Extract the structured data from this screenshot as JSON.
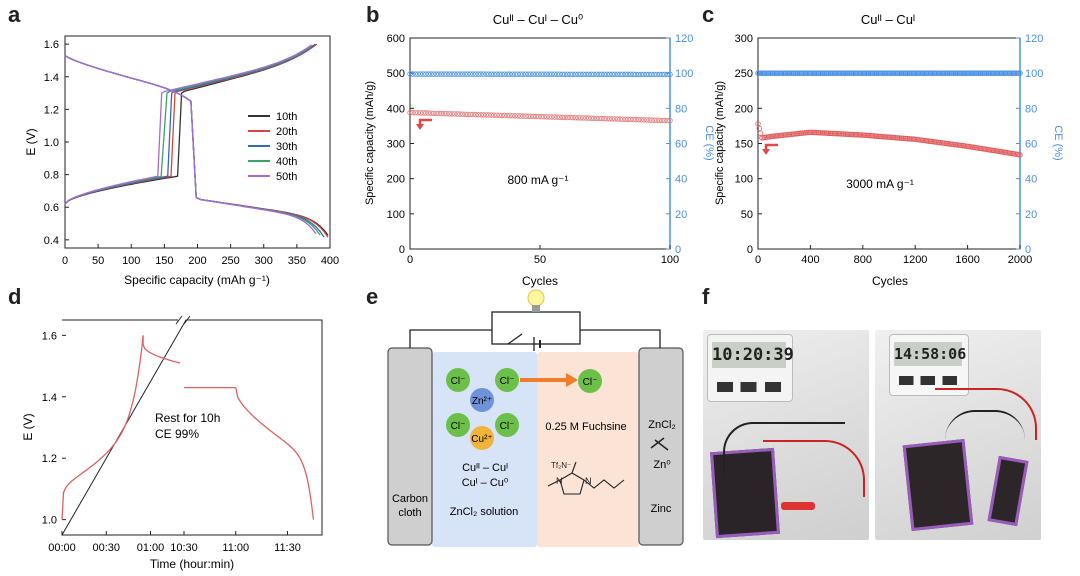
{
  "panels": {
    "a": "a",
    "b": "b",
    "c": "c",
    "d": "d",
    "e": "e",
    "f": "f"
  },
  "chart_data": [
    {
      "id": "a",
      "type": "line",
      "title": "",
      "xlabel": "Specific capacity (mAh g⁻¹)",
      "ylabel": "E (V)",
      "xlim": [
        0,
        400
      ],
      "ylim": [
        0.35,
        1.65
      ],
      "xticks": [
        "0",
        "50",
        "100",
        "150",
        "200",
        "250",
        "300",
        "350",
        "400"
      ],
      "yticks": [
        "0.4",
        "0.6",
        "0.8",
        "1.0",
        "1.2",
        "1.4",
        "1.6"
      ],
      "legend": [
        "10th",
        "20th",
        "30th",
        "40th",
        "50th"
      ],
      "colors": [
        "#333333",
        "#d9443c",
        "#2f6cb3",
        "#3aa36b",
        "#a86ad6"
      ],
      "series": [
        {
          "name": "10th",
          "discharge_end": 400,
          "charge_end": 378,
          "plateau_start": 170
        },
        {
          "name": "20th",
          "discharge_end": 398,
          "charge_end": 380,
          "plateau_start": 160
        },
        {
          "name": "30th",
          "discharge_end": 392,
          "charge_end": 378,
          "plateau_start": 155
        },
        {
          "name": "40th",
          "discharge_end": 388,
          "charge_end": 376,
          "plateau_start": 148
        },
        {
          "name": "50th",
          "discharge_end": 383,
          "charge_end": 374,
          "plateau_start": 140
        }
      ]
    },
    {
      "id": "b",
      "type": "scatter",
      "title": "Cuᴵᴵ – Cuᴵ – Cu⁰",
      "xlabel": "Cycles",
      "ylabel": "Specific capacity (mAh/g)",
      "y2label": "CE (%)",
      "annotation": "800 mA g⁻¹",
      "xlim": [
        0,
        100
      ],
      "ylim": [
        0,
        600
      ],
      "y2lim": [
        0,
        120
      ],
      "xticks": [
        "0",
        "50",
        "100"
      ],
      "yticks": [
        "0",
        "100",
        "200",
        "300",
        "400",
        "500",
        "600"
      ],
      "y2ticks": [
        "0",
        "20",
        "40",
        "60",
        "80",
        "100",
        "120"
      ],
      "series": [
        {
          "name": "capacity",
          "axis": "left",
          "start": 388,
          "end": 365,
          "n": 100,
          "color": "#e07a7a"
        },
        {
          "name": "CE",
          "axis": "right",
          "start": 99.5,
          "end": 99.3,
          "n": 100,
          "color": "#4a90e2"
        }
      ]
    },
    {
      "id": "c",
      "type": "scatter",
      "title": "Cuᴵᴵ – Cuᴵ",
      "xlabel": "Cycles",
      "ylabel": "Specific capacity (mAh/g)",
      "y2label": "CE (%)",
      "annotation": "3000 mA g⁻¹",
      "xlim": [
        0,
        2000
      ],
      "ylim": [
        0,
        300
      ],
      "y2lim": [
        0,
        120
      ],
      "xticks": [
        "0",
        "400",
        "800",
        "1200",
        "1600",
        "2000"
      ],
      "yticks": [
        "0",
        "50",
        "100",
        "150",
        "200",
        "250",
        "300"
      ],
      "y2ticks": [
        "0",
        "20",
        "40",
        "60",
        "80",
        "100",
        "120"
      ],
      "series": [
        {
          "name": "capacity",
          "axis": "left",
          "points": [
            [
              0,
              178
            ],
            [
              30,
              158
            ],
            [
              100,
              160
            ],
            [
              400,
              166
            ],
            [
              800,
              162
            ],
            [
              1200,
              156
            ],
            [
              1600,
              146
            ],
            [
              2000,
              134
            ]
          ],
          "color": "#e06060"
        },
        {
          "name": "CE",
          "axis": "right",
          "start": 100,
          "end": 100,
          "color": "#4a90e2"
        }
      ]
    },
    {
      "id": "d",
      "type": "line",
      "xlabel": "Time (hour:min)",
      "ylabel": "E (V)",
      "annotation_line1": "Rest for 10h",
      "annotation_line2": "CE 99%",
      "ylim": [
        0.95,
        1.65
      ],
      "xticks": [
        "00:00",
        "00:30",
        "01:00",
        "10:30",
        "11:00",
        "11:30"
      ],
      "yticks": [
        "1.0",
        "1.2",
        "1.4",
        "1.6"
      ],
      "segments": [
        {
          "name": "charge",
          "t_start": 0,
          "t_end": 55,
          "v_start": 1.0,
          "v_end": 1.6
        },
        {
          "name": "rest_start",
          "t_start": 55,
          "t_end": 80,
          "v_start": 1.57,
          "v_end": 1.51
        },
        {
          "name": "rest_end",
          "t_start": 630,
          "t_end": 660,
          "v": 1.43
        },
        {
          "name": "discharge",
          "t_start": 660,
          "t_end": 705,
          "v_start": 1.43,
          "v_end": 1.0
        }
      ]
    }
  ],
  "schematic": {
    "left_electrode": [
      "Carbon",
      "cloth"
    ],
    "right_electrode": "Zinc",
    "catholyte": "ZnCl₂ solution",
    "anolyte": "0.25 M Fuchsine",
    "ions": {
      "cl": "Cl⁻",
      "zn": "Zn²⁺",
      "cu": "Cu²⁺"
    },
    "reaction_1": "Cuᴵᴵ – Cuᴵ",
    "reaction_2": "Cuᴵ – Cu⁰",
    "zinc_species_top": "ZnCl₂",
    "zinc_species_bottom": "Zn⁰",
    "ionic_liquid_anion": "Tf₂N⁻"
  },
  "photos": {
    "left_timer": "10:20:39",
    "right_timer": "14:58:06"
  }
}
